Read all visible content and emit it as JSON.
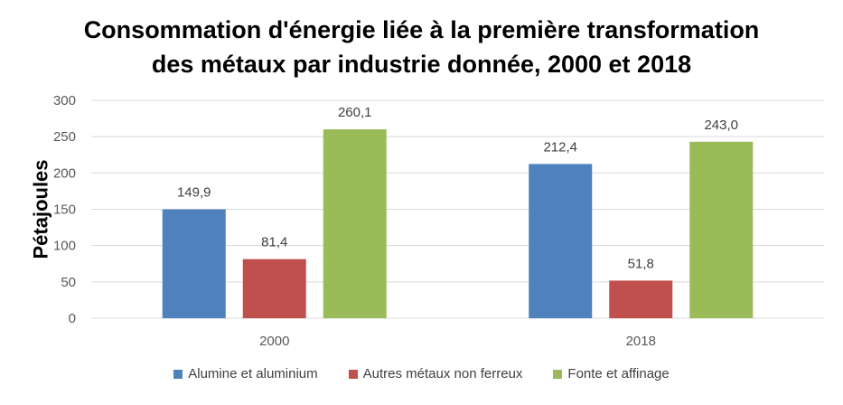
{
  "chart_data": {
    "type": "bar",
    "title_line1": "Consommation d'énergie liée à la première transformation",
    "title_line2": "des métaux par industrie donnée, 2000 et 2018",
    "xlabel": "",
    "ylabel": "Pétajoules",
    "ylim": [
      0,
      300
    ],
    "yticks": [
      0,
      50,
      100,
      150,
      200,
      250,
      300
    ],
    "categories": [
      "2000",
      "2018"
    ],
    "grid": true,
    "legend_position": "bottom",
    "series": [
      {
        "name": "Alumine et aluminium",
        "color": "#4f81bd",
        "values": [
          149.9,
          212.4
        ],
        "labels": [
          "149,9",
          "212,4"
        ]
      },
      {
        "name": "Autres métaux non ferreux",
        "color": "#c0504d",
        "values": [
          81.4,
          51.8
        ],
        "labels": [
          "81,4",
          "51,8"
        ]
      },
      {
        "name": "Fonte et affinage",
        "color": "#9bbb59",
        "values": [
          260.1,
          243.0
        ],
        "labels": [
          "260,1",
          "243,0"
        ]
      }
    ]
  }
}
